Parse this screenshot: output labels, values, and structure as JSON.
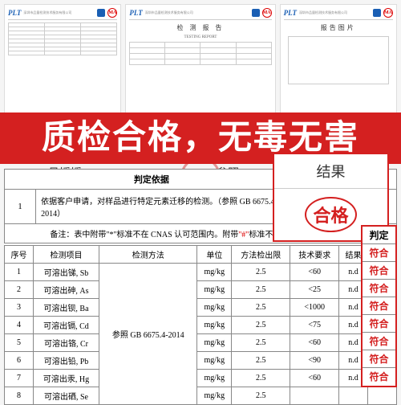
{
  "colors": {
    "banner_bg": "#d42020",
    "highlight_border": "#d42020"
  },
  "banner_text": "质检合格，无毒无害",
  "bg_docs": {
    "plt": "PLT",
    "company": "深圳市品量检测技术服务有限公司",
    "title1": "检 测 报 告",
    "title1_en": "TESTING REPORT",
    "title2": "报告图片",
    "ma": "MA"
  },
  "sig_name": "吕媛媛",
  "sig_ref": "参照 GB",
  "result_callout": {
    "header": "结果",
    "value": "合格"
  },
  "basis": {
    "header_basis": "判定依据",
    "header_result": "结果",
    "index": "1",
    "text": "依据客户申请，对样品进行特定元素迁移的检测。（参照 GB 6675.4-2014）",
    "result": "合格",
    "note_pre": "备注：表中附带\"*\"标准不在 CNAS 认可范围内。附带",
    "note_hash": "\"#\"",
    "note_post": "标准不在 CMA 认可范围内。"
  },
  "detail": {
    "headers": [
      "序号",
      "检测项目",
      "检测方法",
      "单位",
      "方法检出限",
      "技术要求",
      "结果",
      "判定"
    ],
    "method": "参照 GB 6675.4-2014",
    "rows": [
      {
        "idx": "1",
        "item": "可溶出锑, Sb",
        "unit": "mg/kg",
        "lim": "2.5",
        "req": "<60",
        "res": "n.d",
        "judge": "符合"
      },
      {
        "idx": "2",
        "item": "可溶出砷, As",
        "unit": "mg/kg",
        "lim": "2.5",
        "req": "<25",
        "res": "n.d",
        "judge": "符合"
      },
      {
        "idx": "3",
        "item": "可溶出钡, Ba",
        "unit": "mg/kg",
        "lim": "2.5",
        "req": "<1000",
        "res": "n.d",
        "judge": "符合"
      },
      {
        "idx": "4",
        "item": "可溶出镉, Cd",
        "unit": "mg/kg",
        "lim": "2.5",
        "req": "<75",
        "res": "n.d",
        "judge": "符合"
      },
      {
        "idx": "5",
        "item": "可溶出铬, Cr",
        "unit": "mg/kg",
        "lim": "2.5",
        "req": "<60",
        "res": "n.d",
        "judge": "符合"
      },
      {
        "idx": "6",
        "item": "可溶出铅, Pb",
        "unit": "mg/kg",
        "lim": "2.5",
        "req": "<90",
        "res": "n.d",
        "judge": "符合"
      },
      {
        "idx": "7",
        "item": "可溶出汞, Hg",
        "unit": "mg/kg",
        "lim": "2.5",
        "req": "<60",
        "res": "n.d",
        "judge": "符合"
      },
      {
        "idx": "8",
        "item": "可溶出硒, Se",
        "unit": "mg/kg",
        "lim": "2.5",
        "req": "",
        "res": "",
        "judge": ""
      }
    ]
  },
  "judge_side": {
    "header": "判定",
    "values": [
      "符合",
      "符合",
      "符合",
      "符合",
      "符合",
      "符合",
      "符合",
      "符合"
    ]
  }
}
